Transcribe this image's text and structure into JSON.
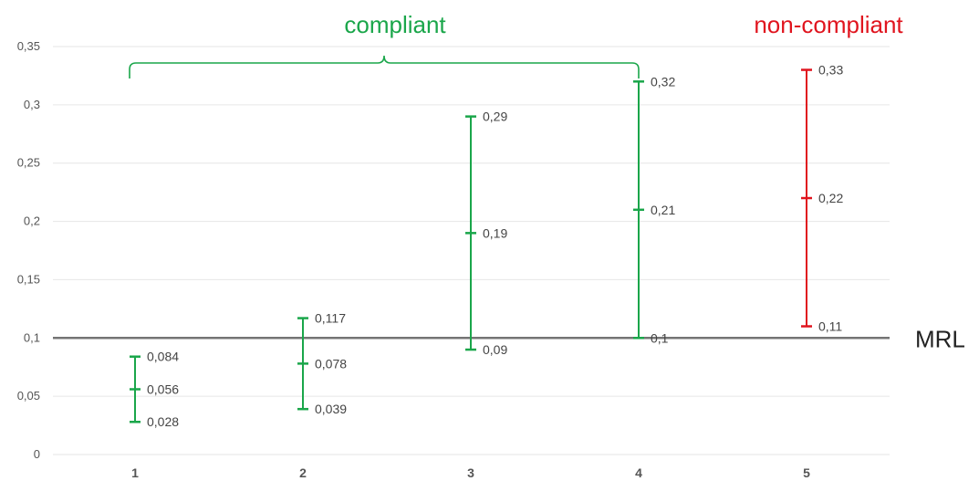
{
  "chart_data": {
    "type": "errorbar",
    "x": [
      "1",
      "2",
      "3",
      "4",
      "5"
    ],
    "ylim": [
      0,
      0.35
    ],
    "yticks": [
      0,
      0.05,
      0.1,
      0.15,
      0.2,
      0.25,
      0.3,
      0.35
    ],
    "ytick_labels": [
      "0",
      "0,05",
      "0,1",
      "0,15",
      "0,2",
      "0,25",
      "0,3",
      "0,35"
    ],
    "grid": true,
    "points": [
      {
        "x": "1",
        "low": 0.028,
        "mid": 0.056,
        "high": 0.084,
        "low_label": "0,028",
        "mid_label": "0,056",
        "high_label": "0,084",
        "status": "compliant"
      },
      {
        "x": "2",
        "low": 0.039,
        "mid": 0.078,
        "high": 0.117,
        "low_label": "0,039",
        "mid_label": "0,078",
        "high_label": "0,117",
        "status": "compliant"
      },
      {
        "x": "3",
        "low": 0.09,
        "mid": 0.19,
        "high": 0.29,
        "low_label": "0,09",
        "mid_label": "0,19",
        "high_label": "0,29",
        "status": "compliant"
      },
      {
        "x": "4",
        "low": 0.1,
        "mid": 0.21,
        "high": 0.32,
        "low_label": "0,1",
        "mid_label": "0,21",
        "high_label": "0,32",
        "status": "compliant"
      },
      {
        "x": "5",
        "low": 0.11,
        "mid": 0.22,
        "high": 0.33,
        "low_label": "0,11",
        "mid_label": "0,22",
        "high_label": "0,33",
        "status": "non-compliant"
      }
    ],
    "reference_line": {
      "y": 0.1,
      "label": "MRL",
      "color": "#757575"
    },
    "groups": [
      {
        "label": "compliant",
        "from": "1",
        "to": "4",
        "color": "#1aa64a"
      },
      {
        "label": "non-compliant",
        "from": "5",
        "to": "5",
        "color": "#e0141e"
      }
    ],
    "colors": {
      "compliant": "#1aa64a",
      "non-compliant": "#e0141e",
      "grid": "#e6e6e6",
      "axis_text": "#555555"
    }
  }
}
